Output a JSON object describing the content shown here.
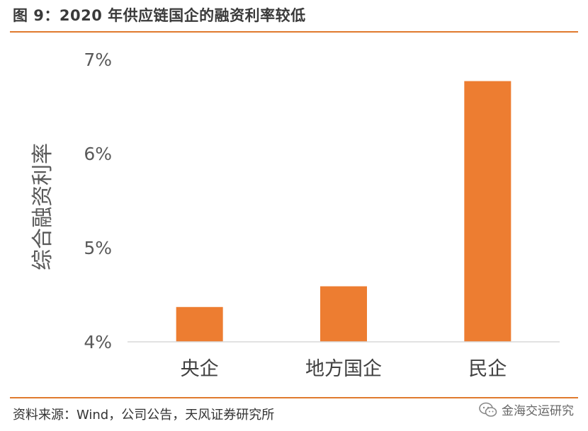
{
  "header": {
    "title": "图 9：2020 年供应链国企的融资利率较低"
  },
  "footer": {
    "source": "资料来源：Wind，公司公告，天风证券研究所",
    "watermark": "金海交运研究",
    "watermark_icon": "wechat-icon"
  },
  "colors": {
    "accent": "#e07a2e",
    "bar": "#ed7d31",
    "axis": "#d9d9d9",
    "text": "#595959"
  },
  "chart_data": {
    "type": "bar",
    "categories": [
      "央企",
      "地方国企",
      "民企"
    ],
    "values": [
      4.37,
      4.59,
      6.77
    ],
    "ylabel": "综合融资利率",
    "ylim": [
      4,
      7
    ],
    "yticks": [
      "4%",
      "5%",
      "6%",
      "7%"
    ],
    "ytick_values": [
      4,
      5,
      6,
      7
    ],
    "grid": false
  }
}
